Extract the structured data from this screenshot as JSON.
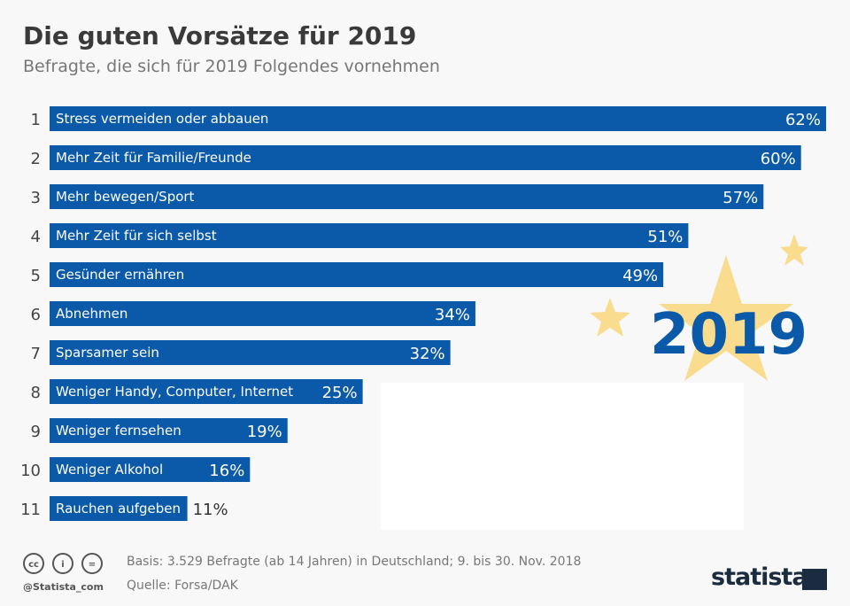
{
  "header": {
    "title": "Die guten Vorsätze für 2019",
    "subtitle": "Befragte, die sich für 2019 Folgendes vornehmen"
  },
  "chart_data": {
    "type": "bar",
    "orientation": "horizontal",
    "title": "Die guten Vorsätze für 2019",
    "subtitle": "Befragte, die sich für 2019 Folgendes vornehmen",
    "ranks": [
      "1",
      "2",
      "3",
      "4",
      "5",
      "6",
      "7",
      "8",
      "9",
      "10",
      "11"
    ],
    "categories": [
      "Stress vermeiden oder abbauen",
      "Mehr Zeit für Familie/Freunde",
      "Mehr bewegen/Sport",
      "Mehr Zeit für sich selbst",
      "Gesünder ernähren",
      "Abnehmen",
      "Sparsamer sein",
      "Weniger Handy, Computer, Internet",
      "Weniger fernsehen",
      "Weniger Alkohol",
      "Rauchen aufgeben"
    ],
    "values": [
      62,
      60,
      57,
      51,
      49,
      34,
      32,
      25,
      19,
      16,
      11
    ],
    "value_labels": [
      "62%",
      "60%",
      "57%",
      "51%",
      "49%",
      "34%",
      "32%",
      "25%",
      "19%",
      "16%",
      "11%"
    ],
    "unit": "%",
    "xlim": [
      0,
      62
    ],
    "grid": false,
    "bar_color": "#0b5aa9"
  },
  "decoration": {
    "year": "2019",
    "star_color": "#fadc8e",
    "year_color": "#0b5aa9"
  },
  "footer": {
    "basis": "Basis: 3.529 Befragte (ab 14 Jahren) in Deutschland; 9. bis 30. Nov. 2018",
    "source": "Quelle: Forsa/DAK",
    "handle": "@Statista_com",
    "cc_icons": [
      "cc",
      "i",
      "="
    ],
    "logo": "statista"
  }
}
